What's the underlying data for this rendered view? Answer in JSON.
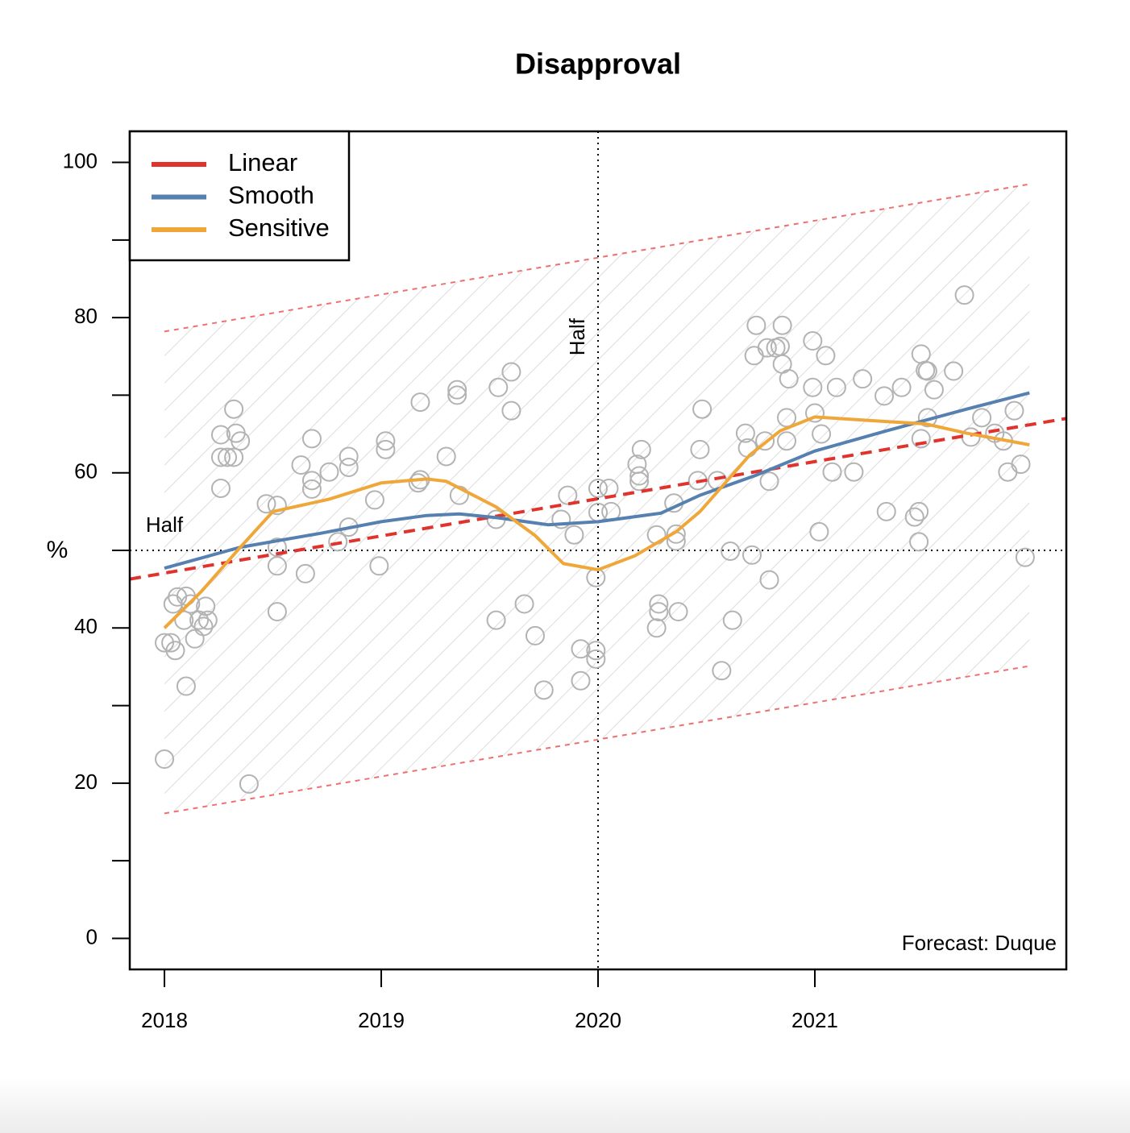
{
  "chart_data": {
    "type": "scatter",
    "title": "Disapproval",
    "y_label": "%",
    "xlim": [
      2017.84,
      2022.16
    ],
    "xticks": [
      2018,
      2019,
      2020,
      2021
    ],
    "ylim": [
      -4,
      104
    ],
    "yticks": [
      0,
      20,
      40,
      60,
      80,
      100
    ],
    "yticks_minor": [
      10,
      30,
      50,
      70,
      90
    ],
    "legend": "top-left",
    "points": {
      "color": "#b3b3b3",
      "x": [
        2018.0,
        2018.0,
        2018.03,
        2018.05,
        2018.04,
        2018.06,
        2018.09,
        2018.1,
        2018.1,
        2018.12,
        2018.14,
        2018.16,
        2018.18,
        2018.19,
        2018.2,
        2018.26,
        2018.26,
        2018.26,
        2018.29,
        2018.32,
        2018.32,
        2018.33,
        2018.35,
        2018.39,
        2018.47,
        2018.52,
        2018.52,
        2018.52,
        2018.52,
        2018.63,
        2018.65,
        2018.68,
        2018.68,
        2018.68,
        2018.76,
        2018.8,
        2018.85,
        2018.85,
        2018.85,
        2018.97,
        2018.99,
        2019.02,
        2019.02,
        2019.17,
        2019.18,
        2019.18,
        2019.3,
        2019.35,
        2019.35,
        2019.36,
        2019.53,
        2019.53,
        2019.54,
        2019.6,
        2019.6,
        2019.66,
        2019.71,
        2019.75,
        2019.83,
        2019.86,
        2019.89,
        2019.92,
        2019.92,
        2019.99,
        2019.99,
        2019.99,
        2020.0,
        2020.0,
        2020.05,
        2020.06,
        2020.18,
        2020.19,
        2020.19,
        2020.2,
        2020.27,
        2020.27,
        2020.28,
        2020.28,
        2020.35,
        2020.36,
        2020.36,
        2020.37,
        2020.46,
        2020.47,
        2020.48,
        2020.55,
        2020.57,
        2020.61,
        2020.62,
        2020.68,
        2020.69,
        2020.71,
        2020.72,
        2020.73,
        2020.77,
        2020.78,
        2020.79,
        2020.79,
        2020.82,
        2020.84,
        2020.85,
        2020.85,
        2020.87,
        2020.87,
        2020.88,
        2020.99,
        2020.99,
        2021.0,
        2021.02,
        2021.03,
        2021.05,
        2021.08,
        2021.1,
        2021.18,
        2021.22,
        2021.32,
        2021.33,
        2021.4,
        2021.46,
        2021.48,
        2021.48,
        2021.49,
        2021.49,
        2021.51,
        2021.52,
        2021.52,
        2021.55,
        2021.64,
        2021.69,
        2021.72,
        2021.77,
        2021.83,
        2021.87,
        2021.89,
        2021.92,
        2021.95,
        2021.97
      ],
      "values": [
        23.1,
        38.1,
        38.1,
        37.1,
        43.1,
        44.0,
        41.0,
        44.1,
        32.5,
        43.1,
        38.6,
        41.0,
        40.2,
        42.8,
        41.0,
        58.0,
        62.0,
        64.9,
        62.0,
        62.0,
        68.2,
        65.1,
        64.1,
        19.9,
        56.0,
        55.8,
        50.4,
        48.0,
        42.1,
        61.0,
        47.0,
        64.4,
        59.0,
        57.9,
        60.1,
        51.1,
        62.1,
        60.7,
        53.0,
        56.5,
        48.0,
        64.1,
        63.0,
        58.7,
        59.1,
        69.1,
        62.1,
        70.7,
        70.0,
        57.1,
        54.0,
        41.0,
        71.0,
        73.0,
        68.0,
        43.1,
        39.0,
        32.0,
        54.0,
        57.1,
        52.0,
        37.3,
        33.2,
        46.5,
        37.1,
        36.0,
        58.0,
        54.9,
        58.0,
        55.0,
        61.1,
        59.6,
        58.9,
        63.0,
        52.0,
        40.0,
        43.1,
        42.1,
        56.1,
        52.1,
        51.2,
        42.1,
        59.0,
        63.0,
        68.2,
        59.0,
        34.5,
        49.9,
        41.0,
        65.1,
        63.2,
        49.4,
        75.1,
        79.0,
        64.1,
        76.1,
        58.9,
        46.2,
        76.1,
        76.3,
        79.0,
        74.0,
        67.1,
        64.1,
        72.1,
        77.0,
        71.0,
        67.7,
        52.4,
        65.0,
        75.1,
        60.1,
        71.0,
        60.1,
        72.1,
        69.9,
        55.0,
        71.0,
        54.3,
        55.0,
        51.1,
        75.3,
        64.4,
        73.2,
        73.1,
        67.1,
        70.7,
        73.1,
        82.9,
        64.6,
        67.1,
        65.1,
        64.1,
        60.1,
        68.0,
        61.1,
        49.1
      ]
    },
    "band": {
      "color": "#f07070",
      "hatch": "#dddddd",
      "x": [
        2018.0,
        2021.99
      ],
      "upper": [
        78.2,
        97.2
      ],
      "lower": [
        16.1,
        35.1
      ]
    },
    "series": [
      {
        "name": "Linear",
        "color": "#e0332d",
        "dashed": true,
        "x": [
          2017.84,
          2022.16
        ],
        "values": [
          46.3,
          67.0
        ]
      },
      {
        "name": "Smooth",
        "color": "#5680b0",
        "dashed": false,
        "x": [
          2018.0,
          2018.35,
          2018.72,
          2019.0,
          2019.21,
          2019.36,
          2019.54,
          2019.77,
          2020.0,
          2020.29,
          2020.47,
          2020.73,
          2021.0,
          2021.33,
          2021.7,
          2021.99
        ],
        "values": [
          47.7,
          50.4,
          52.2,
          53.7,
          54.5,
          54.7,
          54.2,
          53.3,
          53.7,
          54.8,
          57.1,
          59.7,
          62.8,
          65.4,
          68.2,
          70.3
        ]
      },
      {
        "name": "Sensitive",
        "color": "#f0a73a",
        "dashed": false,
        "x": [
          2018.0,
          2018.17,
          2018.35,
          2018.5,
          2018.76,
          2019.0,
          2019.21,
          2019.3,
          2019.53,
          2019.71,
          2019.84,
          2020.0,
          2020.17,
          2020.36,
          2020.47,
          2020.7,
          2020.84,
          2021.0,
          2021.33,
          2021.51,
          2021.7,
          2021.99
        ],
        "values": [
          40.0,
          44.7,
          50.4,
          55.0,
          56.6,
          58.7,
          59.2,
          58.9,
          55.6,
          51.9,
          48.3,
          47.5,
          49.3,
          52.4,
          55.0,
          62.3,
          65.4,
          67.2,
          66.6,
          66.3,
          65.1,
          63.6
        ]
      }
    ],
    "hline": {
      "value": 50,
      "label": "Half"
    },
    "vline": {
      "value": 2020,
      "label": "Half"
    },
    "annotation": "Forecast: Duque"
  }
}
